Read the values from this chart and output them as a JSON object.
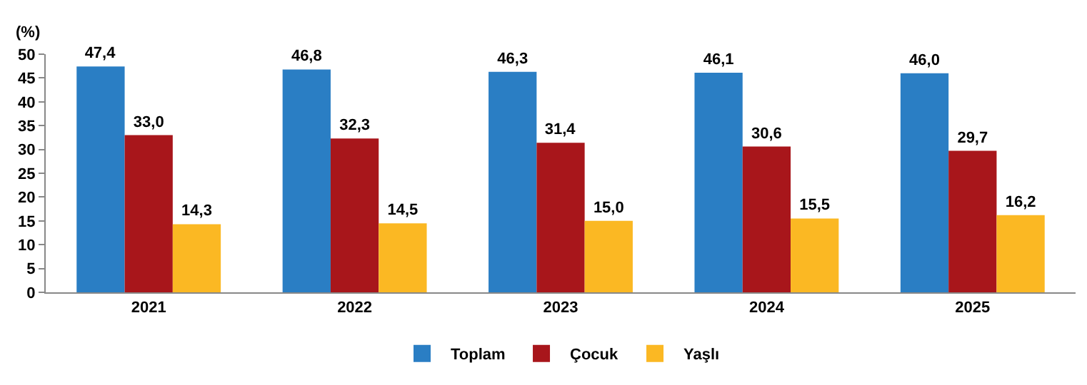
{
  "chart_data": {
    "type": "bar",
    "ylabel": "(%)",
    "categories": [
      "2021",
      "2022",
      "2023",
      "2024",
      "2025"
    ],
    "series": [
      {
        "name": "Toplam",
        "color": "#2a7ec4",
        "values": [
          47.4,
          46.8,
          46.3,
          46.1,
          46.0
        ],
        "value_labels": [
          "47,4",
          "46,8",
          "46,3",
          "46,1",
          "46,0"
        ]
      },
      {
        "name": "Çocuk",
        "color": "#a8161b",
        "values": [
          33.0,
          32.3,
          31.4,
          30.6,
          29.7
        ],
        "value_labels": [
          "33,0",
          "32,3",
          "31,4",
          "30,6",
          "29,7"
        ]
      },
      {
        "name": "Yaşlı",
        "color": "#fbb823",
        "values": [
          14.3,
          14.5,
          15.0,
          15.5,
          16.2
        ],
        "value_labels": [
          "14,3",
          "14,5",
          "15,0",
          "15,5",
          "16,2"
        ]
      }
    ],
    "ylim": [
      0,
      50
    ],
    "yticks": [
      0,
      5,
      10,
      15,
      20,
      25,
      30,
      35,
      40,
      45,
      50
    ],
    "grid": false,
    "legend": "bottom"
  }
}
